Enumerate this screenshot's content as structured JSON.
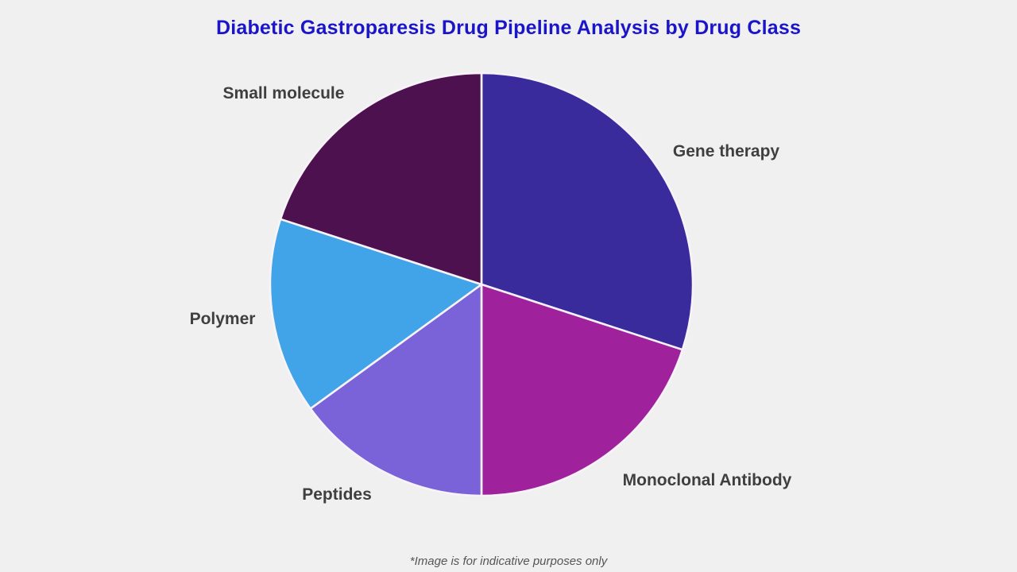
{
  "title": "Diabetic Gastroparesis Drug Pipeline Analysis by Drug Class",
  "footnote": "*Image is for indicative purposes only",
  "theme": {
    "background": "#f0f0f1",
    "title_color": "#1b15c9",
    "label_color": "#3f3f3f",
    "separator_color": "#f8f3f8",
    "footnote_color": "#555555"
  },
  "chart_data": {
    "type": "pie",
    "title": "Diabetic Gastroparesis Drug Pipeline Analysis by Drug Class",
    "categories": [
      "Gene therapy",
      "Monoclonal Antibody",
      "Peptides",
      "Polymer",
      "Small molecule"
    ],
    "values": [
      30,
      20,
      15,
      15,
      20
    ],
    "unit": "percent_share_estimated",
    "colors": [
      "#3a2b9d",
      "#a0219c",
      "#7a62d9",
      "#41a3e8",
      "#4e1150"
    ],
    "start_angle_deg": 90,
    "direction": "clockwise",
    "legend_position": "none",
    "data_labels": "category-names-outside",
    "grid": false
  }
}
